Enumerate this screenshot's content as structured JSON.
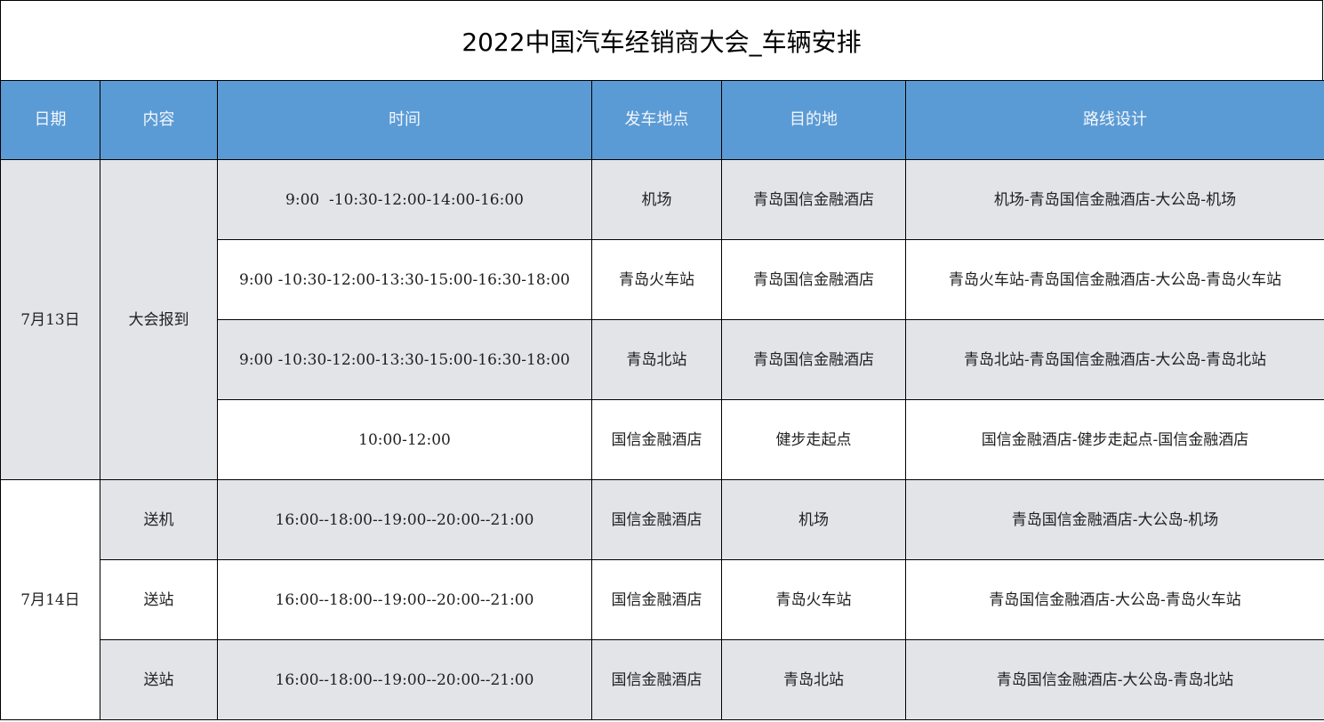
{
  "title": "2022中国汽车经销商大会_车辆安排",
  "colors": {
    "header_bg": "#5b9bd5",
    "alt_row_bg": "#e3e4e8"
  },
  "headers": [
    "日期",
    "内容",
    "时间",
    "发车地点",
    "目的地",
    "路线设计"
  ],
  "groups": [
    {
      "date": "7月13日",
      "content": "大会报到"
    },
    {
      "date": "7月14日"
    }
  ],
  "rows": [
    {
      "time": "9:00  -10:30-12:00-14:00-16:00",
      "from": "机场",
      "to": "青岛国信金融酒店",
      "route": "机场-青岛国信金融酒店-大公岛-机场"
    },
    {
      "time": "9:00  -10:30-12:00-13:30-15:00-16:30-18:00",
      "from": "青岛火车站",
      "to": "青岛国信金融酒店",
      "route": "青岛火车站-青岛国信金融酒店-大公岛-青岛火车站"
    },
    {
      "time": "9:00  -10:30-12:00-13:30-15:00-16:30-18:00",
      "from": "青岛北站",
      "to": "青岛国信金融酒店",
      "route": "青岛北站-青岛国信金融酒店-大公岛-青岛北站"
    },
    {
      "time": "10:00-12:00",
      "from": "国信金融酒店",
      "to": "健步走起点",
      "route": "国信金融酒店-健步走起点-国信金融酒店"
    },
    {
      "content": "送机",
      "time": "16:00--18:00--19:00--20:00--21:00",
      "from": "国信金融酒店",
      "to": "机场",
      "route": "青岛国信金融酒店-大公岛-机场"
    },
    {
      "content": "送站",
      "time": "16:00--18:00--19:00--20:00--21:00",
      "from": "国信金融酒店",
      "to": "青岛火车站",
      "route": "青岛国信金融酒店-大公岛-青岛火车站"
    },
    {
      "content": "送站",
      "time": "16:00--18:00--19:00--20:00--21:00",
      "from": "国信金融酒店",
      "to": "青岛北站",
      "route": "青岛国信金融酒店-大公岛-青岛北站"
    }
  ]
}
